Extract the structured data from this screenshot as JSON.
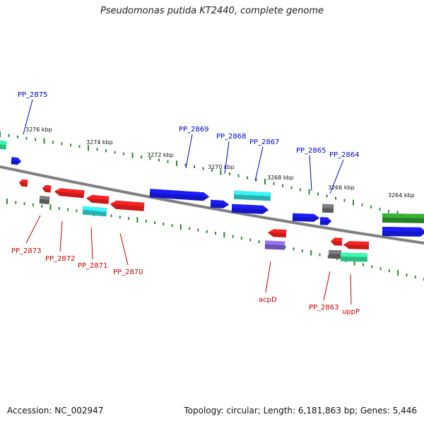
{
  "title": "Pseudomonas putida KT2440, complete genome",
  "footer": {
    "accession": "Accession: NC_002947",
    "summary": "Topology: circular; Length: 6,181,863 bp; Genes: 5,446"
  },
  "colors": {
    "backbone": "#808080",
    "tick": "#2e8b2e",
    "label_forward": "#0000cc",
    "label_reverse": "#cc0000",
    "red": "#ff2020",
    "blue": "#1a1aff",
    "cyan": "#33dddd",
    "gray": "#707070",
    "green": "#2fa02f",
    "teal": "#33eea0",
    "purple": "#8866dd"
  },
  "tick_labels": [
    "3276 kbp",
    "3274 kbp",
    "3272 kbp",
    "3270 kbp",
    "3268 kbp",
    "3266 kbp",
    "3264 kbp"
  ],
  "gene_labels": {
    "forward": [
      "PP_2875",
      "PP_2869",
      "PP_2868",
      "PP_2867",
      "PP_2865",
      "PP_2864"
    ],
    "reverse": [
      "PP_2873",
      "PP_2872",
      "PP_2871",
      "PP_2870",
      "acpD",
      "PP_2863",
      "uppP"
    ]
  }
}
